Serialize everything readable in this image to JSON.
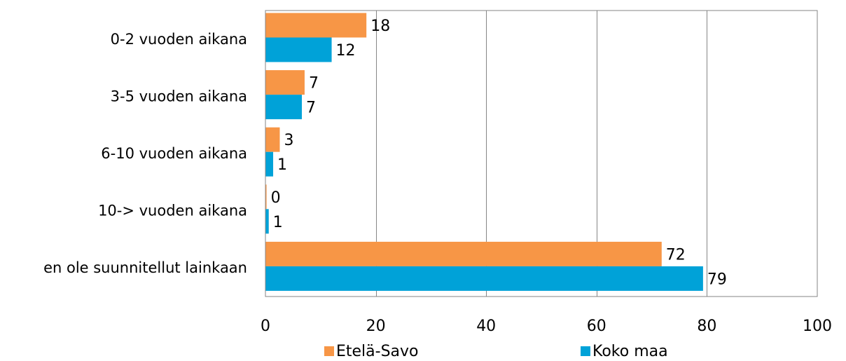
{
  "chart_data": {
    "type": "bar",
    "orientation": "horizontal",
    "categories": [
      "0-2 vuoden aikana",
      "3-5 vuoden aikana",
      "6-10 vuoden aikana",
      "10-> vuoden aikana",
      "en ole suunnitellut lainkaan"
    ],
    "series": [
      {
        "name": "Etelä-Savo",
        "color": "#f79646",
        "values": [
          18.3,
          7.1,
          2.6,
          0.2,
          71.8
        ]
      },
      {
        "name": "Koko maa",
        "color": "#00a2d8",
        "values": [
          12.0,
          6.6,
          1.4,
          0.6,
          79.3
        ]
      }
    ],
    "data_labels": [
      [
        "18",
        "7",
        "3",
        "0",
        "72"
      ],
      [
        "12",
        "7",
        "1",
        "1",
        "79"
      ]
    ],
    "xlim": [
      0,
      100
    ],
    "xticks": [
      0,
      20,
      40,
      60,
      80,
      100
    ],
    "grid": true,
    "legend_position": "bottom",
    "title": "",
    "xlabel": "",
    "ylabel": ""
  }
}
